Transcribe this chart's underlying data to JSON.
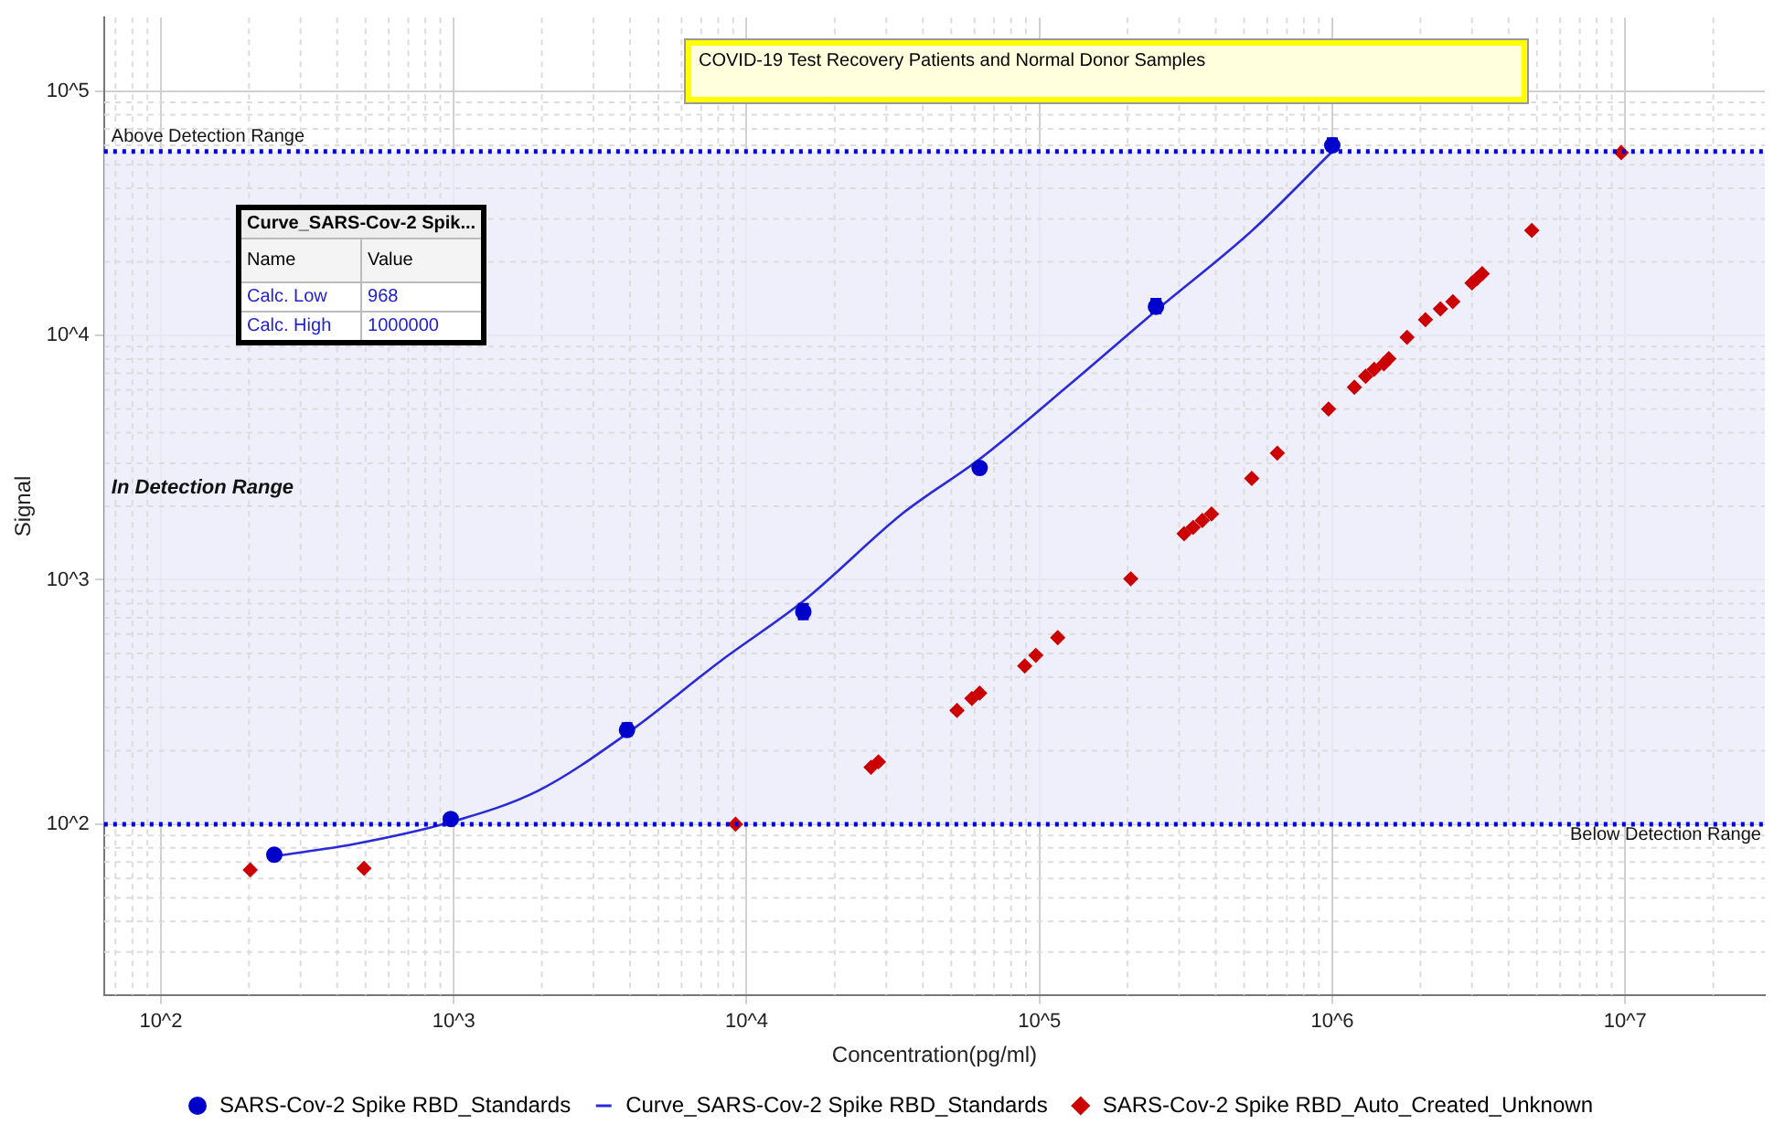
{
  "chart_data": {
    "type": "scatter",
    "title": "COVID-19 Test Recovery Patients and Normal Donor Samples",
    "xlabel": "Concentration(pg/ml)",
    "ylabel": "Signal",
    "log": "xy",
    "grid": true,
    "legend": "bottom",
    "xlim": [
      64,
      30000000
    ],
    "ylim": [
      20,
      200000
    ],
    "xticks": [
      {
        "value": 100,
        "label": "10^2"
      },
      {
        "value": 1000,
        "label": "10^3"
      },
      {
        "value": 10000,
        "label": "10^4"
      },
      {
        "value": 100000,
        "label": "10^5"
      },
      {
        "value": 1000000,
        "label": "10^6"
      },
      {
        "value": 10000000,
        "label": "10^7"
      }
    ],
    "yticks": [
      {
        "value": 100,
        "label": "10^2"
      },
      {
        "value": 1000,
        "label": "10^3"
      },
      {
        "value": 10000,
        "label": "10^4"
      },
      {
        "value": 100000,
        "label": "10^5"
      }
    ],
    "series": [
      {
        "name": "SARS-Cov-2 Spike RBD_Standards",
        "marker": "circle",
        "color": "#0000cc",
        "x": [
          244,
          977,
          3906,
          15625,
          62500,
          250000,
          1000000
        ],
        "values": [
          75,
          105,
          243,
          740,
          2870,
          13100,
          60000
        ],
        "errors": [
          null,
          null,
          [
            231,
            258
          ],
          [
            692,
            795
          ],
          null,
          [
            12370,
            14050
          ],
          [
            57300,
            63900
          ]
        ]
      },
      {
        "name": "Curve_SARS-Cov-2 Spike RBD_Standards",
        "type": "line",
        "marker": "none",
        "line_style": "solid",
        "color": "#2a2ad8",
        "x": [
          244,
          460,
          977,
          1940,
          3906,
          8180,
          15625,
          34500,
          62500,
          126000,
          250000,
          531000,
          1000000
        ],
        "values": [
          74,
          83,
          102,
          137,
          235,
          467,
          818,
          1890,
          3120,
          6260,
          12640,
          26800,
          56600
        ]
      },
      {
        "name": "SARS-Cov-2 Spike RBD_Auto_Created_Unknown",
        "marker": "diamond",
        "color": "#cc0000",
        "x": [
          202,
          494,
          9170,
          26600,
          28200,
          52300,
          58800,
          62500,
          89100,
          97200,
          115500,
          205000,
          312000,
          335000,
          360000,
          387000,
          531000,
          649000,
          971000,
          1190000,
          1300000,
          1390000,
          1500000,
          1560000,
          1800000,
          2080000,
          2340000,
          2580000,
          3000000,
          3120000,
          3250000,
          4800000,
          9700000
        ],
        "values": [
          65,
          66,
          100,
          171,
          180,
          292,
          327,
          344,
          444,
          491,
          580,
          1010,
          1545,
          1640,
          1750,
          1860,
          2600,
          3300,
          5000,
          6140,
          6810,
          7270,
          7650,
          8040,
          9830,
          11600,
          12850,
          13750,
          16400,
          17100,
          17900,
          26900,
          56000
        ]
      }
    ],
    "ref_lines": [
      {
        "axis": "y",
        "value": 56600,
        "label": "Above Detection Range",
        "color": "#0000dd",
        "line_style": "dotted"
      },
      {
        "axis": "y",
        "value": 100,
        "label": "Below Detection Range",
        "color": "#0000dd",
        "line_style": "dotted"
      }
    ],
    "bands": [
      {
        "axis": "y",
        "from": 100,
        "to": 56600,
        "label": "In Detection Range",
        "color": "#ececfc"
      }
    ],
    "annotations": [
      "Curve_SARS-Cov-2 Spik...",
      "Name",
      "Value",
      "Calc. Low",
      "968",
      "Calc. High",
      "1000000"
    ]
  }
}
